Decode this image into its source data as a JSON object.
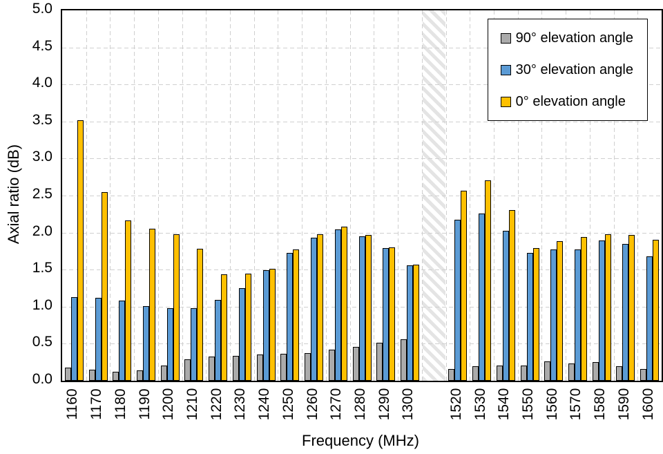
{
  "figure": {
    "background": "#FFFFFF",
    "axis_color": "#000000",
    "grid_color": "#CFCFCF",
    "hatch_color": "#E4E4E4",
    "bar_border_color": "#000000"
  },
  "chart_data": {
    "type": "bar",
    "title": "",
    "xlabel": "Frequency (MHz)",
    "ylabel": "Axial ratio (dB)",
    "ylim": [
      0,
      5
    ],
    "ytick_step": 0.5,
    "yticks": [
      "0.0",
      "0.5",
      "1.0",
      "1.5",
      "2.0",
      "2.5",
      "3.0",
      "3.5",
      "4.0",
      "4.5",
      "5.0"
    ],
    "grid": "dashed",
    "legend_position": "top-right",
    "categories": [
      "1160",
      "1170",
      "1180",
      "1190",
      "1200",
      "1210",
      "1220",
      "1230",
      "1240",
      "1250",
      "1260",
      "1270",
      "1280",
      "1290",
      "1300",
      "1520",
      "1530",
      "1540",
      "1550",
      "1560",
      "1570",
      "1580",
      "1590",
      "1600"
    ],
    "gap_slot_index": 15,
    "gap_note": "hatched separator band between 1300 MHz and 1520 MHz",
    "series": [
      {
        "name": "90° elevation angle",
        "color": "#ABABAB",
        "values": [
          0.18,
          0.15,
          0.12,
          0.14,
          0.21,
          0.29,
          0.33,
          0.34,
          0.35,
          0.36,
          0.37,
          0.42,
          0.46,
          0.51,
          0.56,
          0.16,
          0.2,
          0.21,
          0.21,
          0.26,
          0.23,
          0.25,
          0.2,
          0.16
        ]
      },
      {
        "name": "30° elevation angle",
        "color": "#5B9BD5",
        "values": [
          1.13,
          1.12,
          1.08,
          1.01,
          0.98,
          0.98,
          1.09,
          1.25,
          1.49,
          1.73,
          1.93,
          2.04,
          1.95,
          1.79,
          1.56,
          2.17,
          2.26,
          2.02,
          1.73,
          1.77,
          1.77,
          1.89,
          1.85,
          1.68
        ]
      },
      {
        "name": "0° elevation angle",
        "color": "#FFC000",
        "values": [
          3.52,
          2.55,
          2.16,
          2.05,
          1.98,
          1.78,
          1.44,
          1.45,
          1.51,
          1.77,
          1.98,
          2.08,
          1.97,
          1.8,
          1.57,
          2.57,
          2.71,
          2.3,
          1.79,
          1.88,
          1.94,
          1.98,
          1.97,
          1.9
        ]
      }
    ]
  }
}
